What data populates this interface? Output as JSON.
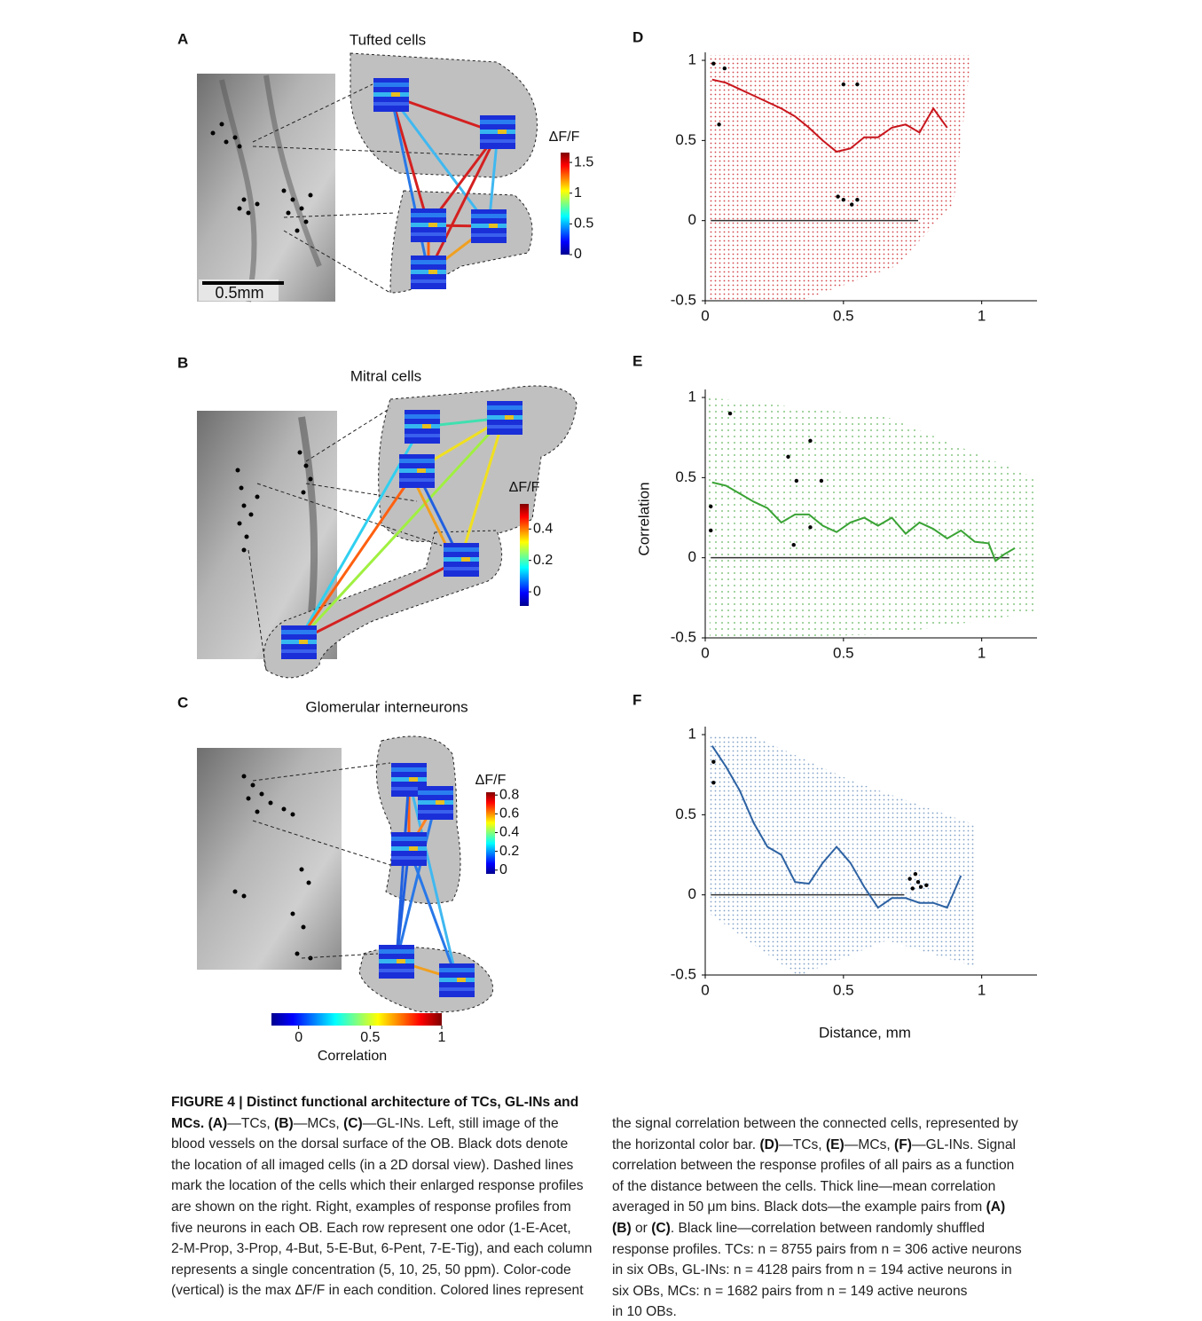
{
  "panels": [
    {
      "letter": "A",
      "title": "Tufted cells",
      "title_color": "#c8161d",
      "scale_bar": "0.5mm",
      "colorbar_label": "ΔF/F",
      "colorbar_ticks": [
        0,
        0.5,
        1,
        1.5
      ],
      "colorbar_lim": [
        0,
        1.66
      ]
    },
    {
      "letter": "B",
      "title": "Mitral cells",
      "title_color": "#3aa335",
      "colorbar_label": "ΔF/F",
      "colorbar_ticks": [
        0,
        0.2,
        0.4
      ],
      "colorbar_lim": [
        -0.09,
        0.56
      ]
    },
    {
      "letter": "C",
      "title": "Glomerular interneurons",
      "title_color": "#2d62a3",
      "colorbar_label": "ΔF/F",
      "colorbar_ticks": [
        0,
        0.2,
        0.4,
        0.6,
        0.8
      ],
      "colorbar_lim": [
        -0.04,
        0.83
      ]
    }
  ],
  "correlation_colorbar": {
    "label": "Correlation",
    "ticks": [
      0,
      0.5,
      1
    ],
    "lim": [
      -0.19,
      1
    ]
  },
  "chart_data": [
    {
      "type": "scatter",
      "letter": "D",
      "color": "#c8161d",
      "xlim": [
        0,
        1.2
      ],
      "ylim": [
        -0.5,
        1.05
      ],
      "xticks": [
        0,
        0.5,
        1
      ],
      "yticks": [
        -0.5,
        0,
        0.5,
        1
      ],
      "mean_line": {
        "x": [
          0.025,
          0.075,
          0.125,
          0.175,
          0.225,
          0.275,
          0.325,
          0.375,
          0.425,
          0.475,
          0.525,
          0.575,
          0.625,
          0.675,
          0.725,
          0.775,
          0.825,
          0.875
        ],
        "y": [
          0.88,
          0.86,
          0.82,
          0.78,
          0.74,
          0.7,
          0.65,
          0.58,
          0.5,
          0.43,
          0.45,
          0.52,
          0.52,
          0.58,
          0.6,
          0.55,
          0.7,
          0.58
        ]
      },
      "shuffled_line": {
        "x": [
          0.02,
          0.77
        ],
        "y": [
          0,
          0
        ]
      },
      "example_pairs": {
        "x": [
          0.03,
          0.07,
          0.05,
          0.5,
          0.55,
          0.48,
          0.5,
          0.53,
          0.55
        ],
        "y": [
          0.98,
          0.95,
          0.6,
          0.85,
          0.85,
          0.15,
          0.13,
          0.1,
          0.13
        ]
      }
    },
    {
      "type": "scatter",
      "letter": "E",
      "color": "#3aa335",
      "y_label": "Correlation",
      "xlim": [
        0,
        1.2
      ],
      "ylim": [
        -0.5,
        1.05
      ],
      "xticks": [
        0,
        0.5,
        1
      ],
      "yticks": [
        -0.5,
        0,
        0.5,
        1
      ],
      "mean_line": {
        "x": [
          0.025,
          0.075,
          0.125,
          0.175,
          0.225,
          0.275,
          0.325,
          0.375,
          0.425,
          0.475,
          0.525,
          0.575,
          0.625,
          0.675,
          0.725,
          0.775,
          0.825,
          0.875,
          0.925,
          0.975,
          1.025,
          1.05,
          1.08,
          1.12
        ],
        "y": [
          0.47,
          0.45,
          0.4,
          0.35,
          0.31,
          0.22,
          0.27,
          0.27,
          0.2,
          0.16,
          0.22,
          0.25,
          0.2,
          0.25,
          0.15,
          0.22,
          0.18,
          0.12,
          0.17,
          0.1,
          0.09,
          -0.02,
          0.02,
          0.06
        ]
      },
      "shuffled_line": {
        "x": [
          0.02,
          1.1
        ],
        "y": [
          0,
          0
        ]
      },
      "example_pairs": {
        "x": [
          0.09,
          0.02,
          0.02,
          0.3,
          0.33,
          0.38,
          0.42,
          0.38,
          0.32
        ],
        "y": [
          0.9,
          0.32,
          0.17,
          0.63,
          0.48,
          0.73,
          0.48,
          0.19,
          0.08
        ]
      }
    },
    {
      "type": "scatter",
      "letter": "F",
      "color": "#2d62a3",
      "x_label": "Distance, mm",
      "xlim": [
        0,
        1.2
      ],
      "ylim": [
        -0.5,
        1.05
      ],
      "xticks": [
        0,
        0.5,
        1
      ],
      "yticks": [
        -0.5,
        0,
        0.5,
        1
      ],
      "mean_line": {
        "x": [
          0.025,
          0.075,
          0.125,
          0.175,
          0.225,
          0.275,
          0.325,
          0.375,
          0.425,
          0.475,
          0.525,
          0.575,
          0.625,
          0.675,
          0.725,
          0.775,
          0.825,
          0.875,
          0.925
        ],
        "y": [
          0.93,
          0.8,
          0.65,
          0.45,
          0.3,
          0.25,
          0.08,
          0.07,
          0.2,
          0.3,
          0.2,
          0.05,
          -0.08,
          -0.02,
          -0.02,
          -0.05,
          -0.05,
          -0.08,
          0.12
        ]
      },
      "shuffled_line": {
        "x": [
          0.02,
          0.72
        ],
        "y": [
          0,
          0
        ]
      },
      "example_pairs": {
        "x": [
          0.03,
          0.03,
          0.74,
          0.76,
          0.77,
          0.78,
          0.8,
          0.75
        ],
        "y": [
          0.83,
          0.7,
          0.1,
          0.13,
          0.08,
          0.05,
          0.06,
          0.04
        ]
      }
    }
  ],
  "caption": {
    "left": [
      [
        {
          "text": "FIGURE 4 | Distinct functional architecture of TCs, GL-INs and",
          "bold": true
        }
      ],
      [
        {
          "text": "MCs. (A)",
          "bold": true
        },
        {
          "text": "—TCs, "
        },
        {
          "text": "(B)",
          "bold": true
        },
        {
          "text": "—MCs, "
        },
        {
          "text": "(C)",
          "bold": true
        },
        {
          "text": "—GL-INs. Left, still image of the"
        }
      ],
      [
        {
          "text": "blood vessels on the dorsal surface of the OB. Black dots denote"
        }
      ],
      [
        {
          "text": "the location of all imaged cells (in a 2D dorsal view). Dashed lines"
        }
      ],
      [
        {
          "text": "mark the location of the cells which their enlarged response profiles"
        }
      ],
      [
        {
          "text": "are shown on the right. Right, examples of response profiles from"
        }
      ],
      [
        {
          "text": "five neurons in each OB. Each row represent one odor (1-E-Acet,"
        }
      ],
      [
        {
          "text": "2-M-Prop, 3-Prop, 4-But, 5-E-But, 6-Pent, 7-E-Tig), and each column"
        }
      ],
      [
        {
          "text": "represents a single concentration (5, 10, 25, 50 ppm). Color-code"
        }
      ],
      [
        {
          "text": "(vertical) is the max ΔF/F in each condition. Colored lines represent"
        }
      ]
    ],
    "right": [
      [
        {
          "text": "the signal correlation between the connected cells, represented by"
        }
      ],
      [
        {
          "text": "the horizontal color bar. "
        },
        {
          "text": "(D)",
          "bold": true
        },
        {
          "text": "—TCs, "
        },
        {
          "text": "(E)",
          "bold": true
        },
        {
          "text": "—MCs, "
        },
        {
          "text": "(F)",
          "bold": true
        },
        {
          "text": "—GL-INs. Signal"
        }
      ],
      [
        {
          "text": "correlation between the response profiles of all pairs as a function"
        }
      ],
      [
        {
          "text": "of the distance between the cells. Thick line—mean correlation"
        }
      ],
      [
        {
          "text": "averaged in 50 μm bins. Black dots—the example pairs from "
        },
        {
          "text": "(A)",
          "bold": true
        }
      ],
      [
        {
          "text": "(B)",
          "bold": true
        },
        {
          "text": " or "
        },
        {
          "text": "(C)",
          "bold": true
        },
        {
          "text": ". Black line—correlation between randomly shuffled"
        }
      ],
      [
        {
          "text": "response profiles. TCs: n = 8755 pairs from n = 306 active neurons"
        }
      ],
      [
        {
          "text": "in six OBs, GL-INs: n = 4128 pairs from n = 194 active neurons in"
        }
      ],
      [
        {
          "text": "six OBs, MCs: n = 1682 pairs from n = 149 active neurons"
        }
      ],
      [
        {
          "text": "in 10 OBs."
        }
      ]
    ]
  }
}
